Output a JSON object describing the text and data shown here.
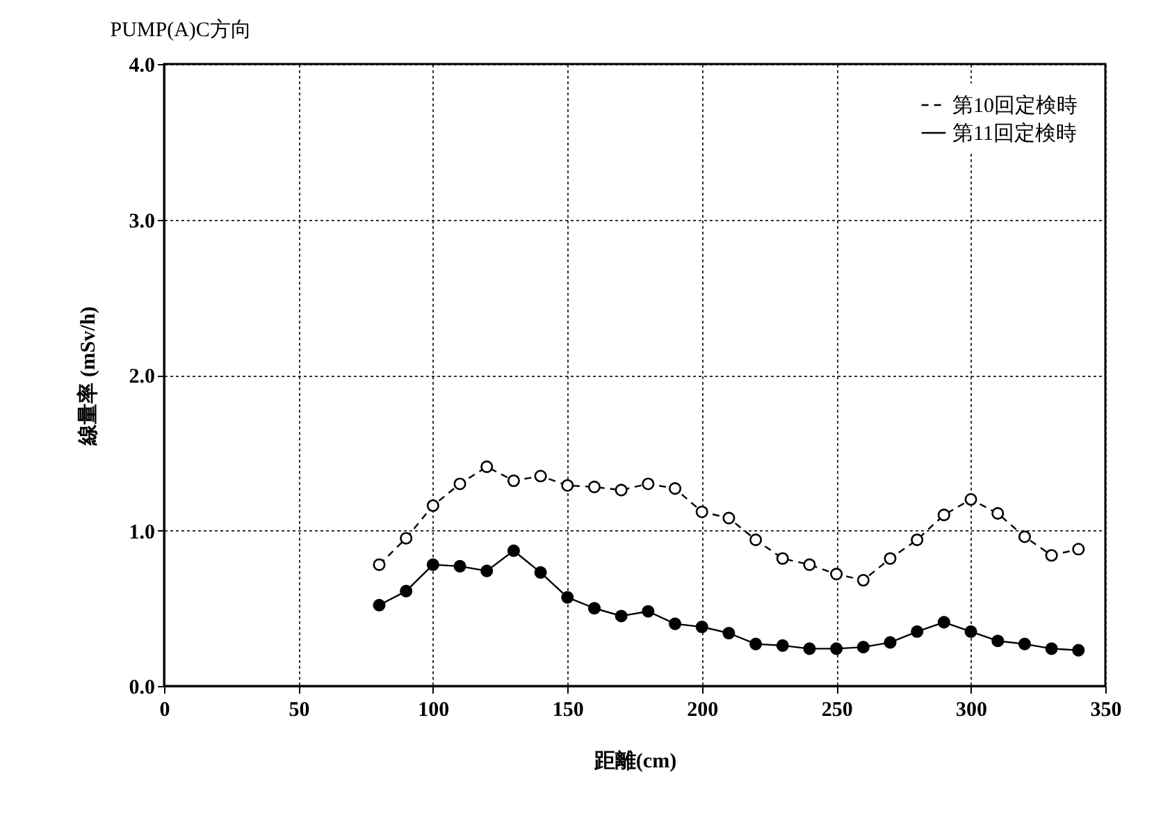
{
  "chart_data": {
    "type": "line",
    "title": "PUMP(A)C方向",
    "xlabel": "距離(cm)",
    "ylabel": "線量率 (mSv/h)",
    "x": [
      80,
      90,
      100,
      110,
      120,
      130,
      140,
      150,
      160,
      170,
      180,
      190,
      200,
      210,
      220,
      230,
      240,
      250,
      260,
      270,
      280,
      290,
      300,
      310,
      320,
      330,
      340
    ],
    "series": [
      {
        "name": "第10回定検時",
        "color": "#000000",
        "line_style": "dashed",
        "values": [
          0.78,
          0.95,
          1.16,
          1.3,
          1.41,
          1.32,
          1.35,
          1.29,
          1.28,
          1.26,
          1.3,
          1.27,
          1.12,
          1.08,
          0.94,
          0.82,
          0.78,
          0.72,
          0.68,
          0.82,
          0.94,
          1.1,
          1.2,
          1.11,
          0.96,
          0.84,
          0.88
        ]
      },
      {
        "name": "第11回定検時",
        "color": "#000000",
        "line_style": "solid",
        "values": [
          0.52,
          0.61,
          0.78,
          0.77,
          0.74,
          0.87,
          0.73,
          0.57,
          0.5,
          0.45,
          0.48,
          0.4,
          0.38,
          0.34,
          0.27,
          0.26,
          0.24,
          0.24,
          0.25,
          0.28,
          0.35,
          0.41,
          0.35,
          0.29,
          0.27,
          0.24,
          0.23
        ]
      }
    ],
    "xlim": [
      0,
      350
    ],
    "xticks": [
      0,
      50,
      100,
      150,
      200,
      250,
      300,
      350
    ],
    "ylim": [
      0,
      4
    ],
    "yticks": [
      {
        "value": 0,
        "label": "0.0"
      },
      {
        "value": 1,
        "label": "1.0"
      },
      {
        "value": 2,
        "label": "2.0"
      },
      {
        "value": 3,
        "label": "3.0"
      },
      {
        "value": 4,
        "label": "4.0"
      }
    ],
    "grid": true,
    "legend": "top right",
    "marker": "circle"
  }
}
